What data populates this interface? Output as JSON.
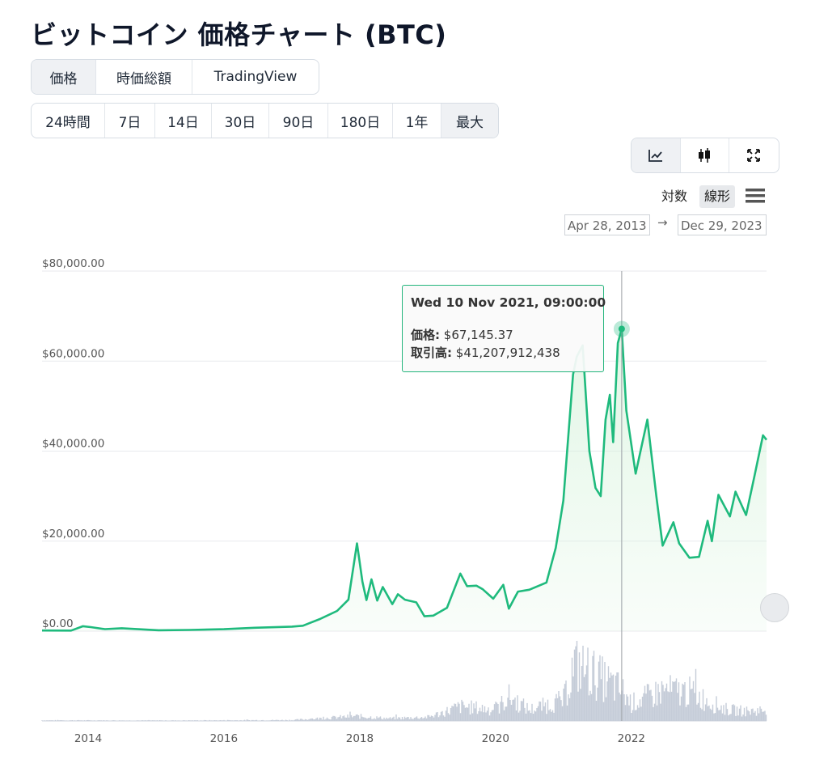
{
  "page": {
    "title": "ビットコイン 価格チャート (BTC)"
  },
  "view_tabs": [
    {
      "label": "価格",
      "active": true
    },
    {
      "label": "時価総額",
      "active": false
    },
    {
      "label": "TradingView",
      "active": false
    }
  ],
  "range_tabs": [
    {
      "label": "24時間",
      "active": false
    },
    {
      "label": "7日",
      "active": false
    },
    {
      "label": "14日",
      "active": false
    },
    {
      "label": "30日",
      "active": false
    },
    {
      "label": "90日",
      "active": false
    },
    {
      "label": "180日",
      "active": false
    },
    {
      "label": "1年",
      "active": false
    },
    {
      "label": "最大",
      "active": true
    }
  ],
  "chart_type_buttons": [
    {
      "icon": "line-chart-icon",
      "active": true
    },
    {
      "icon": "candlestick-icon",
      "active": false
    },
    {
      "icon": "expand-icon",
      "active": false
    }
  ],
  "scale": {
    "log_label": "対数",
    "linear_label": "線形",
    "selected": "linear"
  },
  "date_range": {
    "from": "Apr 28, 2013",
    "arrow": "→",
    "to": "Dec 29, 2023"
  },
  "tooltip": {
    "title": "Wed 10 Nov 2021, 09:00:00",
    "price_label": "価格:",
    "price_value": "$67,145.37",
    "volume_label": "取引高:",
    "volume_value": "$41,207,912,438"
  },
  "colors": {
    "line": "#1fba7d",
    "area": "#d8f3dd",
    "volume": "#c5ccd8",
    "tooltip_border": "#23b57c",
    "grid": "#e8eaed"
  },
  "chart_data": {
    "type": "line",
    "title": "",
    "xlabel": "",
    "ylabel": "",
    "ylim": [
      0,
      80000
    ],
    "xlim": [
      "2013-04-28",
      "2023-12-29"
    ],
    "y_ticks": [
      "$0.00",
      "$20,000.00",
      "$40,000.00",
      "$60,000.00",
      "$80,000.00"
    ],
    "y_tick_values": [
      0,
      20000,
      40000,
      60000,
      80000
    ],
    "x_ticks": [
      "2014",
      "2016",
      "2018",
      "2020",
      "2022"
    ],
    "x_tick_values": [
      "2014-01-01",
      "2016-01-01",
      "2018-01-01",
      "2020-01-01",
      "2022-01-01"
    ],
    "grid": true,
    "highlight": {
      "x": "2021-11-10",
      "y": 67145.37
    },
    "series": [
      {
        "name": "価格",
        "points": [
          [
            "2013-04-28",
            135
          ],
          [
            "2013-10-01",
            130
          ],
          [
            "2013-12-04",
            1100
          ],
          [
            "2014-01-15",
            900
          ],
          [
            "2014-04-01",
            450
          ],
          [
            "2014-07-01",
            640
          ],
          [
            "2015-01-15",
            200
          ],
          [
            "2015-07-01",
            270
          ],
          [
            "2016-01-01",
            430
          ],
          [
            "2016-06-15",
            750
          ],
          [
            "2017-01-01",
            1000
          ],
          [
            "2017-03-01",
            1200
          ],
          [
            "2017-06-01",
            2700
          ],
          [
            "2017-09-01",
            4500
          ],
          [
            "2017-11-01",
            7000
          ],
          [
            "2017-12-17",
            19500
          ],
          [
            "2018-01-15",
            11000
          ],
          [
            "2018-02-06",
            6900
          ],
          [
            "2018-03-05",
            11500
          ],
          [
            "2018-04-05",
            6800
          ],
          [
            "2018-05-05",
            9800
          ],
          [
            "2018-06-25",
            6000
          ],
          [
            "2018-07-25",
            8200
          ],
          [
            "2018-09-01",
            7000
          ],
          [
            "2018-11-01",
            6400
          ],
          [
            "2018-12-15",
            3300
          ],
          [
            "2019-02-01",
            3450
          ],
          [
            "2019-04-15",
            5200
          ],
          [
            "2019-06-26",
            12800
          ],
          [
            "2019-08-01",
            10000
          ],
          [
            "2019-09-20",
            10100
          ],
          [
            "2019-10-25",
            9300
          ],
          [
            "2019-12-20",
            7200
          ],
          [
            "2020-02-12",
            10300
          ],
          [
            "2020-03-13",
            5000
          ],
          [
            "2020-05-01",
            8800
          ],
          [
            "2020-07-01",
            9200
          ],
          [
            "2020-10-01",
            10800
          ],
          [
            "2020-11-20",
            18500
          ],
          [
            "2020-12-31",
            29000
          ],
          [
            "2021-01-15",
            37000
          ],
          [
            "2021-02-21",
            57000
          ],
          [
            "2021-03-13",
            61000
          ],
          [
            "2021-04-14",
            63500
          ],
          [
            "2021-05-20",
            40000
          ],
          [
            "2021-06-22",
            31800
          ],
          [
            "2021-07-20",
            30000
          ],
          [
            "2021-08-15",
            47000
          ],
          [
            "2021-09-07",
            52500
          ],
          [
            "2021-09-25",
            42000
          ],
          [
            "2021-10-20",
            64000
          ],
          [
            "2021-11-10",
            67145
          ],
          [
            "2021-12-05",
            49000
          ],
          [
            "2022-01-24",
            35000
          ],
          [
            "2022-03-28",
            47000
          ],
          [
            "2022-05-15",
            30000
          ],
          [
            "2022-06-18",
            19000
          ],
          [
            "2022-08-15",
            24200
          ],
          [
            "2022-09-15",
            19500
          ],
          [
            "2022-11-09",
            16300
          ],
          [
            "2022-12-31",
            16500
          ],
          [
            "2023-02-15",
            24500
          ],
          [
            "2023-03-10",
            20000
          ],
          [
            "2023-04-14",
            30300
          ],
          [
            "2023-06-15",
            25500
          ],
          [
            "2023-07-15",
            31000
          ],
          [
            "2023-09-10",
            25800
          ],
          [
            "2023-10-25",
            34500
          ],
          [
            "2023-12-10",
            43500
          ],
          [
            "2023-12-29",
            42500
          ]
        ]
      },
      {
        "name": "取引高",
        "points": [
          [
            "2013-04-28",
            0.2
          ],
          [
            "2015-01-01",
            0.15
          ],
          [
            "2016-01-01",
            0.2
          ],
          [
            "2017-01-01",
            0.3
          ],
          [
            "2017-12-17",
            1.5
          ],
          [
            "2018-06-01",
            0.8
          ],
          [
            "2019-01-01",
            1.2
          ],
          [
            "2019-03-01",
            2.2
          ],
          [
            "2019-06-26",
            4.5
          ],
          [
            "2020-01-01",
            3.5
          ],
          [
            "2020-03-13",
            7.5
          ],
          [
            "2020-07-01",
            3.5
          ],
          [
            "2021-01-01",
            6.5
          ],
          [
            "2021-02-26",
            17.5
          ],
          [
            "2021-05-19",
            15.5
          ],
          [
            "2021-11-10",
            9.5
          ],
          [
            "2022-01-01",
            5.5
          ],
          [
            "2022-05-10",
            8.5
          ],
          [
            "2022-06-18",
            9.5
          ],
          [
            "2022-11-09",
            9
          ],
          [
            "2023-03-15",
            5.5
          ],
          [
            "2023-06-01",
            3.5
          ],
          [
            "2023-10-01",
            3
          ],
          [
            "2023-12-29",
            3.5
          ]
        ]
      }
    ]
  }
}
